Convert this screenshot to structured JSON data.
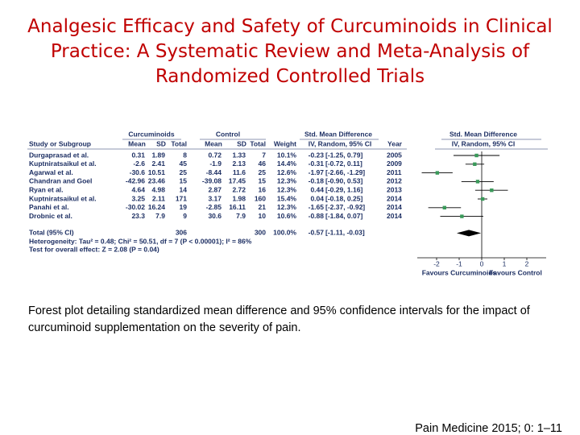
{
  "title": "Analgesic Efficacy and Safety of Curcuminoids in Clinical Practice: A Systematic Review and Meta-Analysis of Randomized Controlled Trials",
  "forest": {
    "group_headers": {
      "treatment": "Curcuminoids",
      "control": "Control",
      "effect": "Std. Mean Difference",
      "plot": "Std. Mean Difference"
    },
    "columns": [
      "Study or Subgroup",
      "Mean",
      "SD",
      "Total",
      "Mean",
      "SD",
      "Total",
      "Weight",
      "IV, Random, 95% CI",
      "Year",
      "IV, Random, 95% CI"
    ],
    "rows": [
      {
        "study": "Durgaprasad et al.",
        "m1": 0.31,
        "sd1": 1.89,
        "n1": 8,
        "m2": 0.72,
        "sd2": 1.33,
        "n2": 7,
        "weight": "10.1%",
        "smd": -0.23,
        "ci": [
          -1.25,
          0.79
        ],
        "ci_label": "[-1.25, 0.79]",
        "year": 2005
      },
      {
        "study": "Kuptniratsaikul et al.",
        "m1": -2.6,
        "sd1": 2.41,
        "n1": 45,
        "m2": -1.9,
        "sd2": 2.13,
        "n2": 46,
        "weight": "14.4%",
        "smd": -0.31,
        "ci": [
          -0.72,
          0.11
        ],
        "ci_label": "[-0.72, 0.11]",
        "year": 2009
      },
      {
        "study": "Agarwal et al.",
        "m1": -30.6,
        "sd1": 10.51,
        "n1": 25,
        "m2": -8.44,
        "sd2": 11.6,
        "n2": 25,
        "weight": "12.6%",
        "smd": -1.97,
        "ci": [
          -2.66,
          -1.29
        ],
        "ci_label": "[-2.66, -1.29]",
        "year": 2011
      },
      {
        "study": "Chandran and Goel",
        "m1": -42.96,
        "sd1": 23.46,
        "n1": 15,
        "m2": -39.08,
        "sd2": 17.45,
        "n2": 15,
        "weight": "12.3%",
        "smd": -0.18,
        "ci": [
          -0.9,
          0.53
        ],
        "ci_label": "[-0.90, 0.53]",
        "year": 2012
      },
      {
        "study": "Ryan et al.",
        "m1": 4.64,
        "sd1": 4.98,
        "n1": 14,
        "m2": 2.87,
        "sd2": 2.72,
        "n2": 16,
        "weight": "12.3%",
        "smd": 0.44,
        "ci": [
          -0.29,
          1.16
        ],
        "ci_label": "[-0.29, 1.16]",
        "year": 2013
      },
      {
        "study": "Kuptniratsaikul et al.",
        "m1": 3.25,
        "sd1": 2.11,
        "n1": 171,
        "m2": 3.17,
        "sd2": 1.98,
        "n2": 160,
        "weight": "15.4%",
        "smd": 0.04,
        "ci": [
          -0.18,
          0.25
        ],
        "ci_label": "[-0.18, 0.25]",
        "year": 2014
      },
      {
        "study": "Panahi et al.",
        "m1": -30.02,
        "sd1": 16.24,
        "n1": 19,
        "m2": -2.85,
        "sd2": 16.11,
        "n2": 21,
        "weight": "12.3%",
        "smd": -1.65,
        "ci": [
          -2.37,
          -0.92
        ],
        "ci_label": "[-2.37, -0.92]",
        "year": 2014
      },
      {
        "study": "Drobnic et al.",
        "m1": 23.3,
        "sd1": 7.9,
        "n1": 9,
        "m2": 30.6,
        "sd2": 7.9,
        "n2": 10,
        "weight": "10.6%",
        "smd": -0.88,
        "ci": [
          -1.84,
          0.07
        ],
        "ci_label": "[-1.84, 0.07]",
        "year": 2014
      }
    ],
    "total": {
      "study": "Total (95% CI)",
      "n1": 306,
      "n2": 300,
      "weight": "100.0%",
      "smd": -0.57,
      "ci": [
        -1.11,
        -0.03
      ],
      "ci_label": "[-1.11, -0.03]"
    },
    "heterogeneity": "Heterogeneity: Tau² = 0.48; Chi² = 50.51, df = 7 (P < 0.00001); I² = 86%",
    "overall": "Test for overall effect: Z = 2.08 (P = 0.04)",
    "axis": {
      "xlim": [
        -3,
        3
      ],
      "ticks": [
        -2,
        -1,
        0,
        1,
        2
      ]
    },
    "favours_left": "Favours Curcuminoids",
    "favours_right": "Favours Control"
  },
  "caption": "Forest plot detailing standardized mean difference and 95% confidence intervals for the impact of curcuminoid supplementation on the severity of pain.",
  "citation": "Pain Medicine 2015; 0: 1–11"
}
